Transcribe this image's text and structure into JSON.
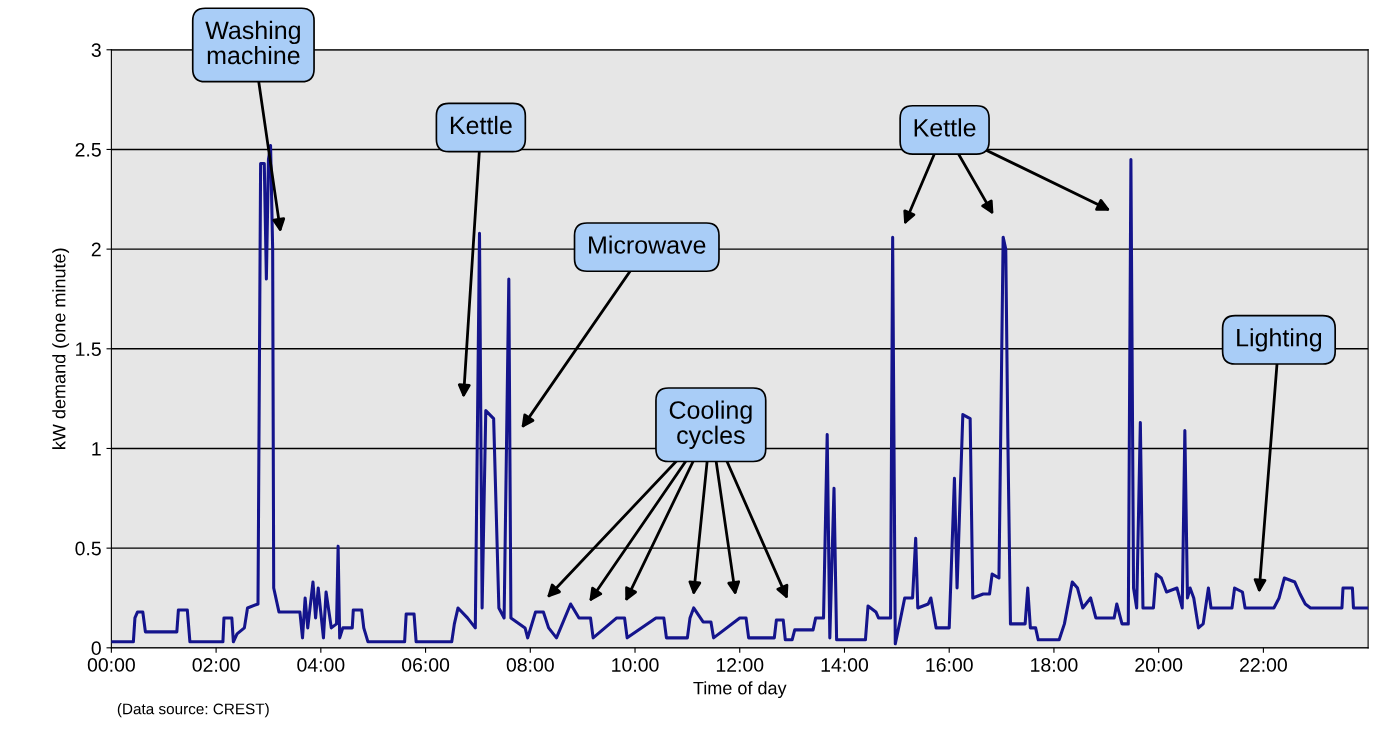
{
  "chart_data": {
    "type": "line",
    "xlabel": "Time of day",
    "ylabel": "kW demand (one minute)",
    "xlim": [
      0,
      24
    ],
    "ylim": [
      0,
      3
    ],
    "xticks": [
      {
        "value": 0,
        "label": "00:00"
      },
      {
        "value": 2,
        "label": "02:00"
      },
      {
        "value": 4,
        "label": "04:00"
      },
      {
        "value": 6,
        "label": "06:00"
      },
      {
        "value": 8,
        "label": "08:00"
      },
      {
        "value": 10,
        "label": "10:00"
      },
      {
        "value": 12,
        "label": "12:00"
      },
      {
        "value": 14,
        "label": "14:00"
      },
      {
        "value": 16,
        "label": "16:00"
      },
      {
        "value": 18,
        "label": "18:00"
      },
      {
        "value": 20,
        "label": "20:00"
      },
      {
        "value": 22,
        "label": "22:00"
      }
    ],
    "yticks": [
      0,
      0.5,
      1,
      1.5,
      2,
      2.5,
      3
    ],
    "grid": "y",
    "legend": false,
    "marker": "none",
    "line_style": "solid",
    "series": [
      {
        "color": "#14148c",
        "x": [
          0,
          0.42,
          0.45,
          0.5,
          0.6,
          0.65,
          1.25,
          1.28,
          1.45,
          1.5,
          2.13,
          2.15,
          2.3,
          2.33,
          2.4,
          2.54,
          2.6,
          2.8,
          2.85,
          2.92,
          2.96,
          3.0,
          3.04,
          3.08,
          3.1,
          3.2,
          3.6,
          3.65,
          3.7,
          3.75,
          3.85,
          3.9,
          3.95,
          4.05,
          4.1,
          4.2,
          4.3,
          4.33,
          4.36,
          4.42,
          4.6,
          4.62,
          4.78,
          4.82,
          4.9,
          5.6,
          5.63,
          5.78,
          5.82,
          6.5,
          6.55,
          6.62,
          6.8,
          6.95,
          7.03,
          7.08,
          7.15,
          7.3,
          7.4,
          7.5,
          7.59,
          7.63,
          7.9,
          7.95,
          8.1,
          8.25,
          8.35,
          8.5,
          8.77,
          8.93,
          9.15,
          9.2,
          9.65,
          9.8,
          9.85,
          10.4,
          10.55,
          10.6,
          11.0,
          11.05,
          11.12,
          11.3,
          11.45,
          11.5,
          12.0,
          12.12,
          12.17,
          12.66,
          12.7,
          12.83,
          12.87,
          13.0,
          13.05,
          13.4,
          13.45,
          13.6,
          13.67,
          13.72,
          13.8,
          13.85,
          14.4,
          14.45,
          14.6,
          14.65,
          14.88,
          14.92,
          14.97,
          15.05,
          15.15,
          15.3,
          15.36,
          15.4,
          15.6,
          15.65,
          15.75,
          16.0,
          16.1,
          16.15,
          16.26,
          16.4,
          16.45,
          16.65,
          16.77,
          16.82,
          16.95,
          17.03,
          17.08,
          17.12,
          17.17,
          17.45,
          17.5,
          17.55,
          17.65,
          17.7,
          18.1,
          18.2,
          18.35,
          18.45,
          18.55,
          18.7,
          18.8,
          19.15,
          19.2,
          19.3,
          19.42,
          19.47,
          19.52,
          19.58,
          19.65,
          19.7,
          19.9,
          19.95,
          20.05,
          20.15,
          20.35,
          20.45,
          20.5,
          20.55,
          20.6,
          20.67,
          20.76,
          20.85,
          20.95,
          21.0,
          21.4,
          21.45,
          21.6,
          21.65,
          22.2,
          22.3,
          22.4,
          22.6,
          22.7,
          22.8,
          22.9,
          23.5,
          23.52,
          23.7,
          23.72,
          24
        ],
        "values": [
          0.03,
          0.03,
          0.15,
          0.18,
          0.18,
          0.08,
          0.08,
          0.19,
          0.19,
          0.03,
          0.03,
          0.15,
          0.15,
          0.03,
          0.07,
          0.1,
          0.2,
          0.22,
          2.43,
          2.43,
          1.85,
          2.45,
          2.52,
          2.0,
          0.3,
          0.18,
          0.18,
          0.05,
          0.25,
          0.1,
          0.33,
          0.15,
          0.3,
          0.05,
          0.28,
          0.1,
          0.12,
          0.51,
          0.05,
          0.1,
          0.1,
          0.19,
          0.19,
          0.1,
          0.03,
          0.03,
          0.17,
          0.17,
          0.03,
          0.03,
          0.12,
          0.2,
          0.15,
          0.1,
          2.08,
          0.2,
          1.19,
          1.15,
          0.2,
          0.15,
          1.85,
          0.15,
          0.1,
          0.05,
          0.18,
          0.18,
          0.1,
          0.05,
          0.22,
          0.15,
          0.15,
          0.05,
          0.15,
          0.15,
          0.05,
          0.15,
          0.15,
          0.05,
          0.05,
          0.15,
          0.2,
          0.13,
          0.13,
          0.05,
          0.15,
          0.15,
          0.05,
          0.05,
          0.14,
          0.14,
          0.04,
          0.04,
          0.09,
          0.09,
          0.15,
          0.15,
          1.07,
          0.05,
          0.8,
          0.04,
          0.04,
          0.21,
          0.18,
          0.15,
          0.15,
          2.06,
          0.02,
          0.12,
          0.25,
          0.25,
          0.55,
          0.2,
          0.22,
          0.25,
          0.1,
          0.1,
          0.85,
          0.3,
          1.17,
          1.15,
          0.25,
          0.27,
          0.27,
          0.37,
          0.35,
          2.06,
          2.0,
          1.05,
          0.12,
          0.12,
          0.3,
          0.1,
          0.1,
          0.04,
          0.04,
          0.12,
          0.33,
          0.3,
          0.2,
          0.25,
          0.15,
          0.15,
          0.22,
          0.12,
          0.12,
          2.45,
          0.3,
          0.2,
          1.13,
          0.2,
          0.2,
          0.37,
          0.35,
          0.28,
          0.3,
          0.2,
          1.09,
          0.25,
          0.3,
          0.25,
          0.1,
          0.12,
          0.3,
          0.2,
          0.2,
          0.3,
          0.28,
          0.2,
          0.2,
          0.25,
          0.35,
          0.33,
          0.27,
          0.22,
          0.2,
          0.2,
          0.3,
          0.3,
          0.2,
          0.2
        ]
      }
    ],
    "annotations": [
      "Washing\nmachine",
      "Kettle",
      "Microwave",
      "Cooling\ncycles",
      "Kettle",
      "Lighting",
      "(Data source: CREST)"
    ]
  }
}
